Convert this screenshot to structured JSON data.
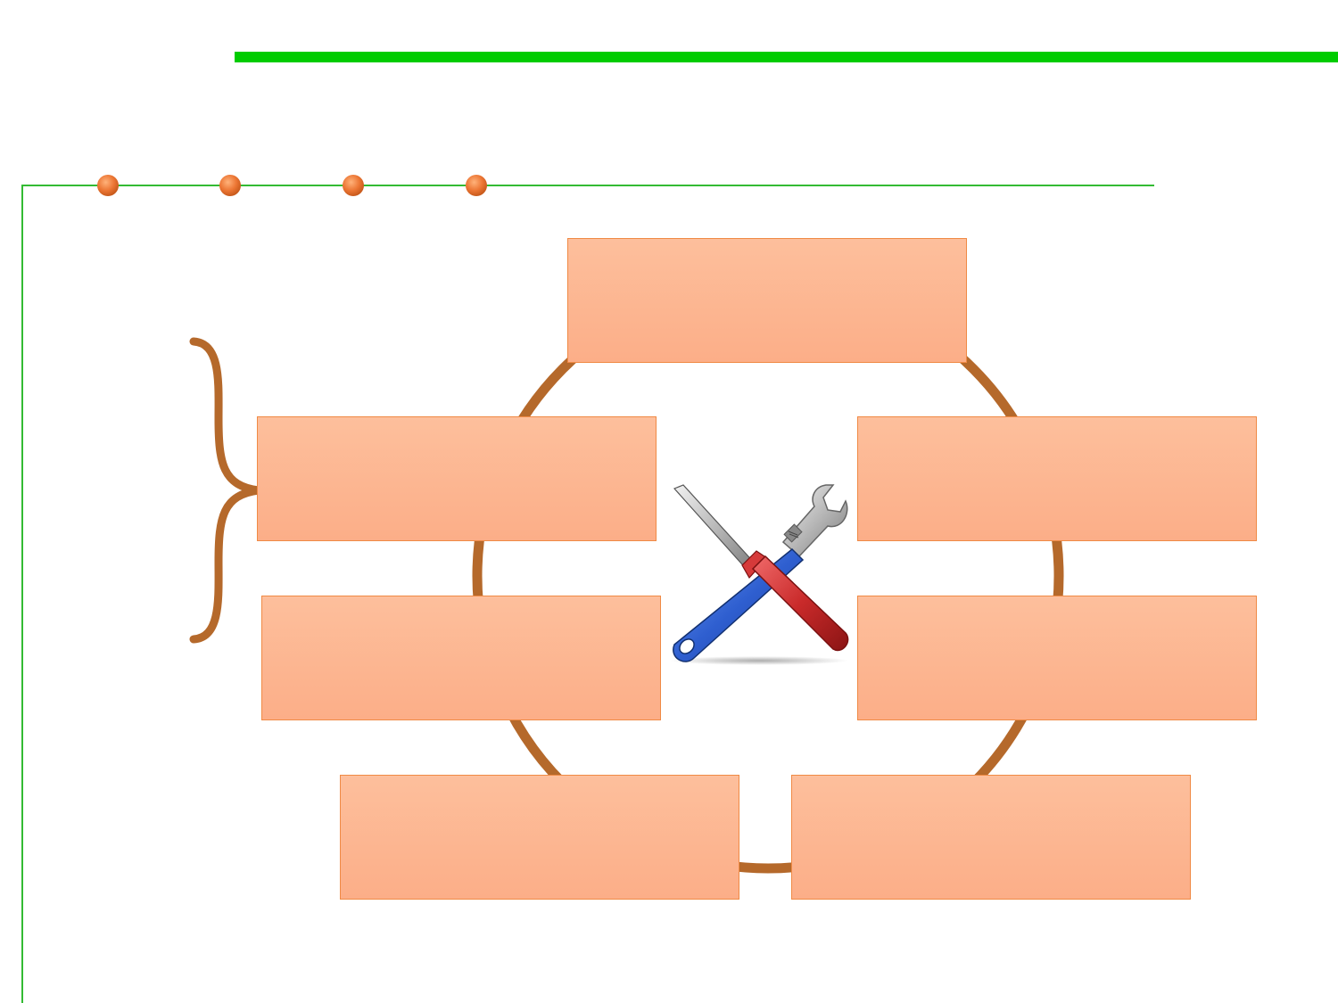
{
  "colors": {
    "title_bar": "#00cc00",
    "frame_line": "#33bb33",
    "dot": "#e8722e",
    "ring": "#b5692b",
    "brace": "#b5692b",
    "box_fill_top": "#fdbf9c",
    "box_fill_bottom": "#fcae88",
    "box_border": "#f08a45"
  },
  "icons": {
    "center": "tools-icon"
  },
  "boxes": {
    "top": "",
    "mid_left": "",
    "mid_right": "",
    "low_left": "",
    "low_right": "",
    "bottom_left": "",
    "bottom_right": ""
  }
}
